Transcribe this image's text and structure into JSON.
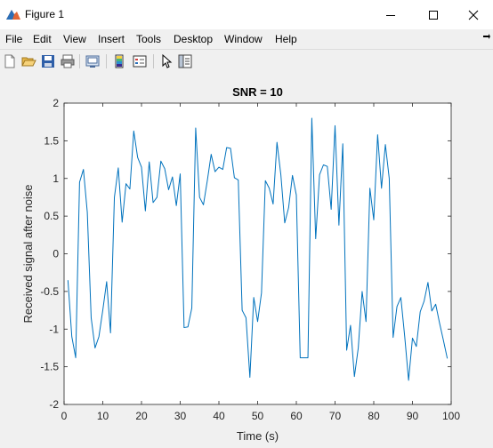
{
  "window": {
    "title": "Figure 1",
    "minimize_icon": "minimize-icon",
    "maximize_icon": "maximize-icon",
    "close_icon": "close-icon"
  },
  "menubar": {
    "items": [
      "File",
      "Edit",
      "View",
      "Insert",
      "Tools",
      "Desktop",
      "Window",
      "Help"
    ],
    "overflow_icon": "toolbar-dock-arrow-icon"
  },
  "toolbar": {
    "buttons": [
      "new-figure-icon",
      "open-file-icon",
      "save-icon",
      "print-icon",
      "link-plot-icon",
      "insert-colorbar-icon",
      "insert-legend-icon",
      "edit-plot-arrow-icon",
      "property-inspector-icon"
    ]
  },
  "chart_data": {
    "type": "line",
    "title": "SNR = 10",
    "xlabel": "Time (s)",
    "ylabel": "Received signal after noise",
    "xlim": [
      0,
      100
    ],
    "ylim": [
      -2,
      2
    ],
    "xticks": [
      "0",
      "10",
      "20",
      "30",
      "40",
      "50",
      "60",
      "70",
      "80",
      "90",
      "100"
    ],
    "yticks": [
      "-2",
      "-1.5",
      "-1",
      "-0.5",
      "0",
      "0.5",
      "1",
      "1.5",
      "2"
    ],
    "grid": false,
    "line_color": "#0072bd",
    "series": [
      {
        "x": [
          1,
          2,
          3,
          4,
          5,
          6,
          7,
          8,
          9,
          10,
          11,
          12,
          13,
          14,
          15,
          16,
          17,
          18,
          19,
          20,
          21,
          22,
          23,
          24,
          25,
          26,
          27,
          28,
          29,
          30,
          31,
          32,
          33,
          34,
          35,
          36,
          37,
          38,
          39,
          40,
          41,
          42,
          43,
          44,
          45,
          46,
          47,
          48,
          49,
          50,
          51,
          52,
          53,
          54,
          55,
          56,
          57,
          58,
          59,
          60,
          61,
          62,
          63,
          64,
          65,
          66,
          67,
          68,
          69,
          70,
          71,
          72,
          73,
          74,
          75,
          76,
          77,
          78,
          79,
          80,
          81,
          82,
          83,
          84,
          85,
          86,
          87,
          88,
          89,
          90,
          91,
          92,
          93,
          94,
          95,
          96,
          97,
          98,
          99
        ],
        "values": [
          -0.35,
          -1.1,
          -1.38,
          0.95,
          1.12,
          0.55,
          -0.85,
          -1.25,
          -1.1,
          -0.75,
          -0.37,
          -1.05,
          0.75,
          1.14,
          0.42,
          0.93,
          0.86,
          1.63,
          1.28,
          1.15,
          0.57,
          1.22,
          0.68,
          0.75,
          1.23,
          1.13,
          0.85,
          1.02,
          0.64,
          1.06,
          -0.98,
          -0.97,
          -0.72,
          1.67,
          0.75,
          0.65,
          0.97,
          1.32,
          1.09,
          1.15,
          1.12,
          1.41,
          1.4,
          1.01,
          0.98,
          -0.75,
          -0.85,
          -1.64,
          -0.58,
          -0.9,
          -0.52,
          0.97,
          0.87,
          0.66,
          1.48,
          1.05,
          0.41,
          0.61,
          1.04,
          0.78,
          -1.38,
          -1.38,
          -1.38,
          1.8,
          0.2,
          1.05,
          1.18,
          1.16,
          0.59,
          1.7,
          0.38,
          1.46,
          -1.28,
          -0.95,
          -1.63,
          -1.25,
          -0.5,
          -0.9,
          0.87,
          0.45,
          1.58,
          0.87,
          1.45,
          1.0,
          -1.11,
          -0.7,
          -0.58,
          -1.1,
          -1.68,
          -1.12,
          -1.23,
          -0.77,
          -0.63,
          -0.38,
          -0.76,
          -0.67,
          -0.92,
          -1.15,
          -1.39
        ]
      }
    ]
  }
}
